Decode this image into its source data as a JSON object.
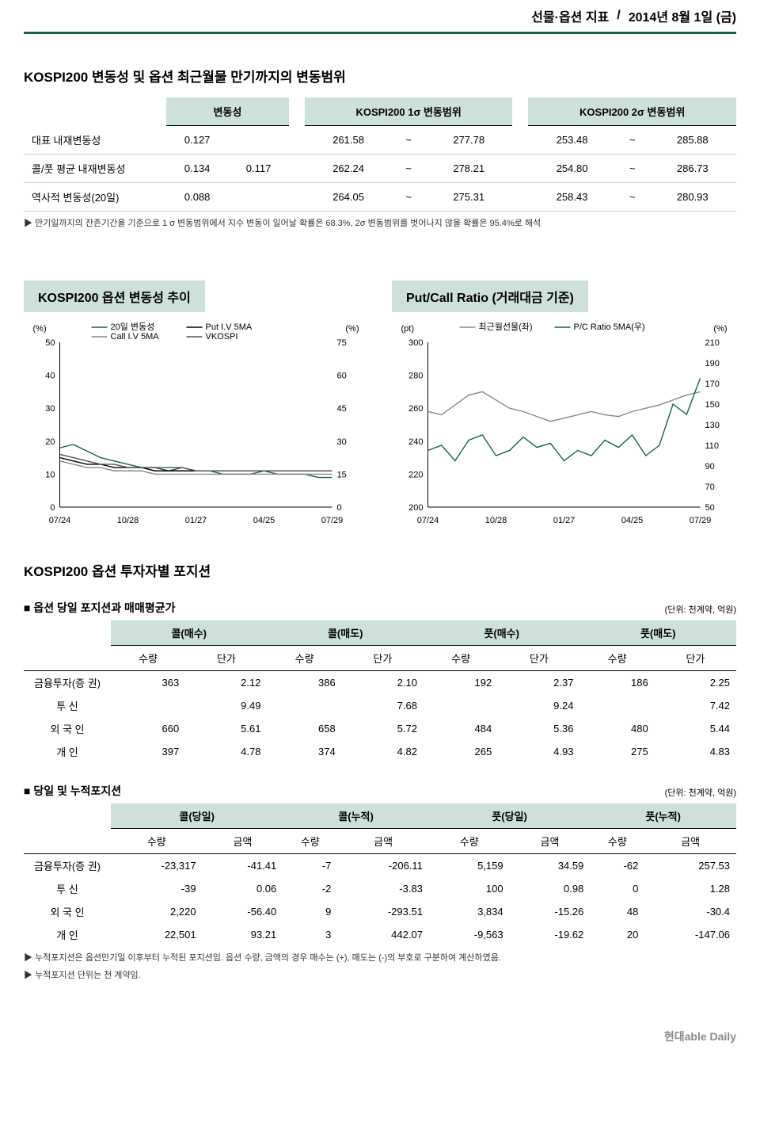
{
  "header": {
    "title": "선물·옵션 지표",
    "date": "2014년 8월 1일 (금)"
  },
  "vol_section": {
    "title": "KOSPI200 변동성 및 옵션 최근월물 만기까지의 변동범위",
    "headers": [
      "",
      "변동성",
      "",
      "KOSPI200 1σ 변동범위",
      "",
      "KOSPI200 2σ 변동범위",
      ""
    ],
    "rows": [
      {
        "label": "대표 내재변동성",
        "v1": "0.127",
        "v2": "",
        "r1a": "261.58",
        "tilde1": "~",
        "r1b": "277.78",
        "r2a": "253.48",
        "tilde2": "~",
        "r2b": "285.88"
      },
      {
        "label": "콜/풋 평균 내재변동성",
        "v1": "0.134",
        "v2": "0.117",
        "r1a": "262.24",
        "tilde1": "~",
        "r1b": "278.21",
        "r2a": "254.80",
        "tilde2": "~",
        "r2b": "286.73"
      },
      {
        "label": "역사적 변동성(20일)",
        "v1": "0.088",
        "v2": "",
        "r1a": "264.05",
        "tilde1": "~",
        "r1b": "275.31",
        "r2a": "258.43",
        "tilde2": "~",
        "r2b": "280.93"
      }
    ],
    "note": "만기일까지의 잔존기간을 기준으로 1 σ 변동범위에서 지수 변동이 일어날 확률은 68.3%, 2σ 변동범위를 벗어나지 않을 확률은 95.4%로 해석"
  },
  "vol_chart": {
    "title": "KOSPI200 옵션 변동성 추이",
    "type": "line",
    "x_ticks": [
      "07/24",
      "10/28",
      "01/27",
      "04/25",
      "07/29"
    ],
    "left_label": "(%)",
    "left_min": 0,
    "left_max": 50,
    "left_ticks": [
      0,
      10,
      20,
      30,
      40,
      50
    ],
    "right_label": "(%)",
    "right_min": 0,
    "right_max": 75,
    "right_ticks": [
      0,
      15,
      30,
      45,
      60,
      75
    ],
    "legend": [
      {
        "name": "20일 변동성",
        "color": "#1a6050"
      },
      {
        "name": "Put I.V 5MA",
        "color": "#000000"
      },
      {
        "name": "Call I.V 5MA",
        "color": "#888888"
      },
      {
        "name": "VKOSPI",
        "color": "#555555"
      }
    ],
    "series": {
      "hv20": [
        18,
        19,
        17,
        15,
        14,
        13,
        12,
        12,
        11,
        12,
        11,
        11,
        10,
        10,
        10,
        11,
        10,
        10,
        10,
        9,
        9
      ],
      "put_iv": [
        15,
        14,
        13,
        13,
        12,
        12,
        12,
        11,
        11,
        11,
        11,
        11,
        11,
        11,
        11,
        11,
        11,
        11,
        11,
        11,
        11
      ],
      "call_iv": [
        14,
        13,
        12,
        12,
        11,
        11,
        11,
        10,
        10,
        10,
        10,
        10,
        10,
        10,
        10,
        10,
        10,
        10,
        10,
        10,
        10
      ],
      "vkospi": [
        16,
        15,
        14,
        13,
        13,
        12,
        12,
        12,
        12,
        12,
        11,
        11,
        11,
        11,
        11,
        11,
        11,
        11,
        11,
        11,
        11
      ]
    }
  },
  "pc_chart": {
    "title": "Put/Call Ratio (거래대금 기준)",
    "type": "line-dual",
    "x_ticks": [
      "07/24",
      "10/28",
      "01/27",
      "04/25",
      "07/29"
    ],
    "left_label": "(pt)",
    "left_min": 200,
    "left_max": 300,
    "left_ticks": [
      200,
      220,
      240,
      260,
      280,
      300
    ],
    "right_label": "(%)",
    "right_min": 50,
    "right_max": 210,
    "right_ticks": [
      50,
      70,
      90,
      110,
      130,
      150,
      170,
      190,
      210
    ],
    "legend": [
      {
        "name": "최근월선물(좌)",
        "color": "#888888"
      },
      {
        "name": "P/C Ratio 5MA(우)",
        "color": "#1a6050"
      }
    ],
    "series": {
      "fut": [
        258,
        256,
        262,
        268,
        270,
        265,
        260,
        258,
        255,
        252,
        254,
        256,
        258,
        256,
        255,
        258,
        260,
        262,
        265,
        268,
        270
      ],
      "pcratio": [
        105,
        110,
        95,
        115,
        120,
        100,
        105,
        118,
        108,
        112,
        95,
        105,
        100,
        115,
        108,
        120,
        100,
        110,
        150,
        140,
        175
      ]
    }
  },
  "pos_title": "KOSPI200 옵션 투자자별 포지션",
  "pos1": {
    "subhead": "■ 옵션 당일 포지션과 매매평균가",
    "unit": "(단위: 천계약, 억원)",
    "groups": [
      "콜(매수)",
      "콜(매도)",
      "풋(매수)",
      "풋(매도)"
    ],
    "sub_cols": [
      "수량",
      "단가"
    ],
    "rows": [
      {
        "label": "금융투자(증 권)",
        "c": [
          "363",
          "2.12",
          "386",
          "2.10",
          "192",
          "2.37",
          "186",
          "2.25"
        ]
      },
      {
        "label": "투 신",
        "c": [
          "",
          "9.49",
          "",
          "7.68",
          "",
          "9.24",
          "",
          "7.42"
        ]
      },
      {
        "label": "외 국 인",
        "c": [
          "660",
          "5.61",
          "658",
          "5.72",
          "484",
          "5.36",
          "480",
          "5.44"
        ]
      },
      {
        "label": "개 인",
        "c": [
          "397",
          "4.78",
          "374",
          "4.82",
          "265",
          "4.93",
          "275",
          "4.83"
        ]
      }
    ]
  },
  "pos2": {
    "subhead": "■ 당일 및 누적포지션",
    "unit": "(단위: 천계약, 억원)",
    "groups": [
      "콜(당일)",
      "콜(누적)",
      "풋(당일)",
      "풋(누적)"
    ],
    "sub_cols": [
      "수량",
      "금액"
    ],
    "rows": [
      {
        "label": "금융투자(증 권)",
        "c": [
          "-23,317",
          "-41.41",
          "-7",
          "-206.11",
          "5,159",
          "34.59",
          "-62",
          "257.53"
        ]
      },
      {
        "label": "투 신",
        "c": [
          "-39",
          "0.06",
          "-2",
          "-3.83",
          "100",
          "0.98",
          "0",
          "1.28"
        ]
      },
      {
        "label": "외 국 인",
        "c": [
          "2,220",
          "-56.40",
          "9",
          "-293.51",
          "3,834",
          "-15.26",
          "48",
          "-30.4"
        ]
      },
      {
        "label": "개 인",
        "c": [
          "22,501",
          "93.21",
          "3",
          "442.07",
          "-9,563",
          "-19.62",
          "20",
          "-147.06"
        ]
      }
    ],
    "notes": [
      "누적포지션은 옵션만기일 이후부터 누적된 포지션임. 옵션 수량, 금액의 경우 매수는 (+), 매도는 (-)의 부호로 구분하여 계산하였음.",
      "누적포지션 단위는 천 계약임."
    ]
  },
  "footer": "현대able Daily"
}
